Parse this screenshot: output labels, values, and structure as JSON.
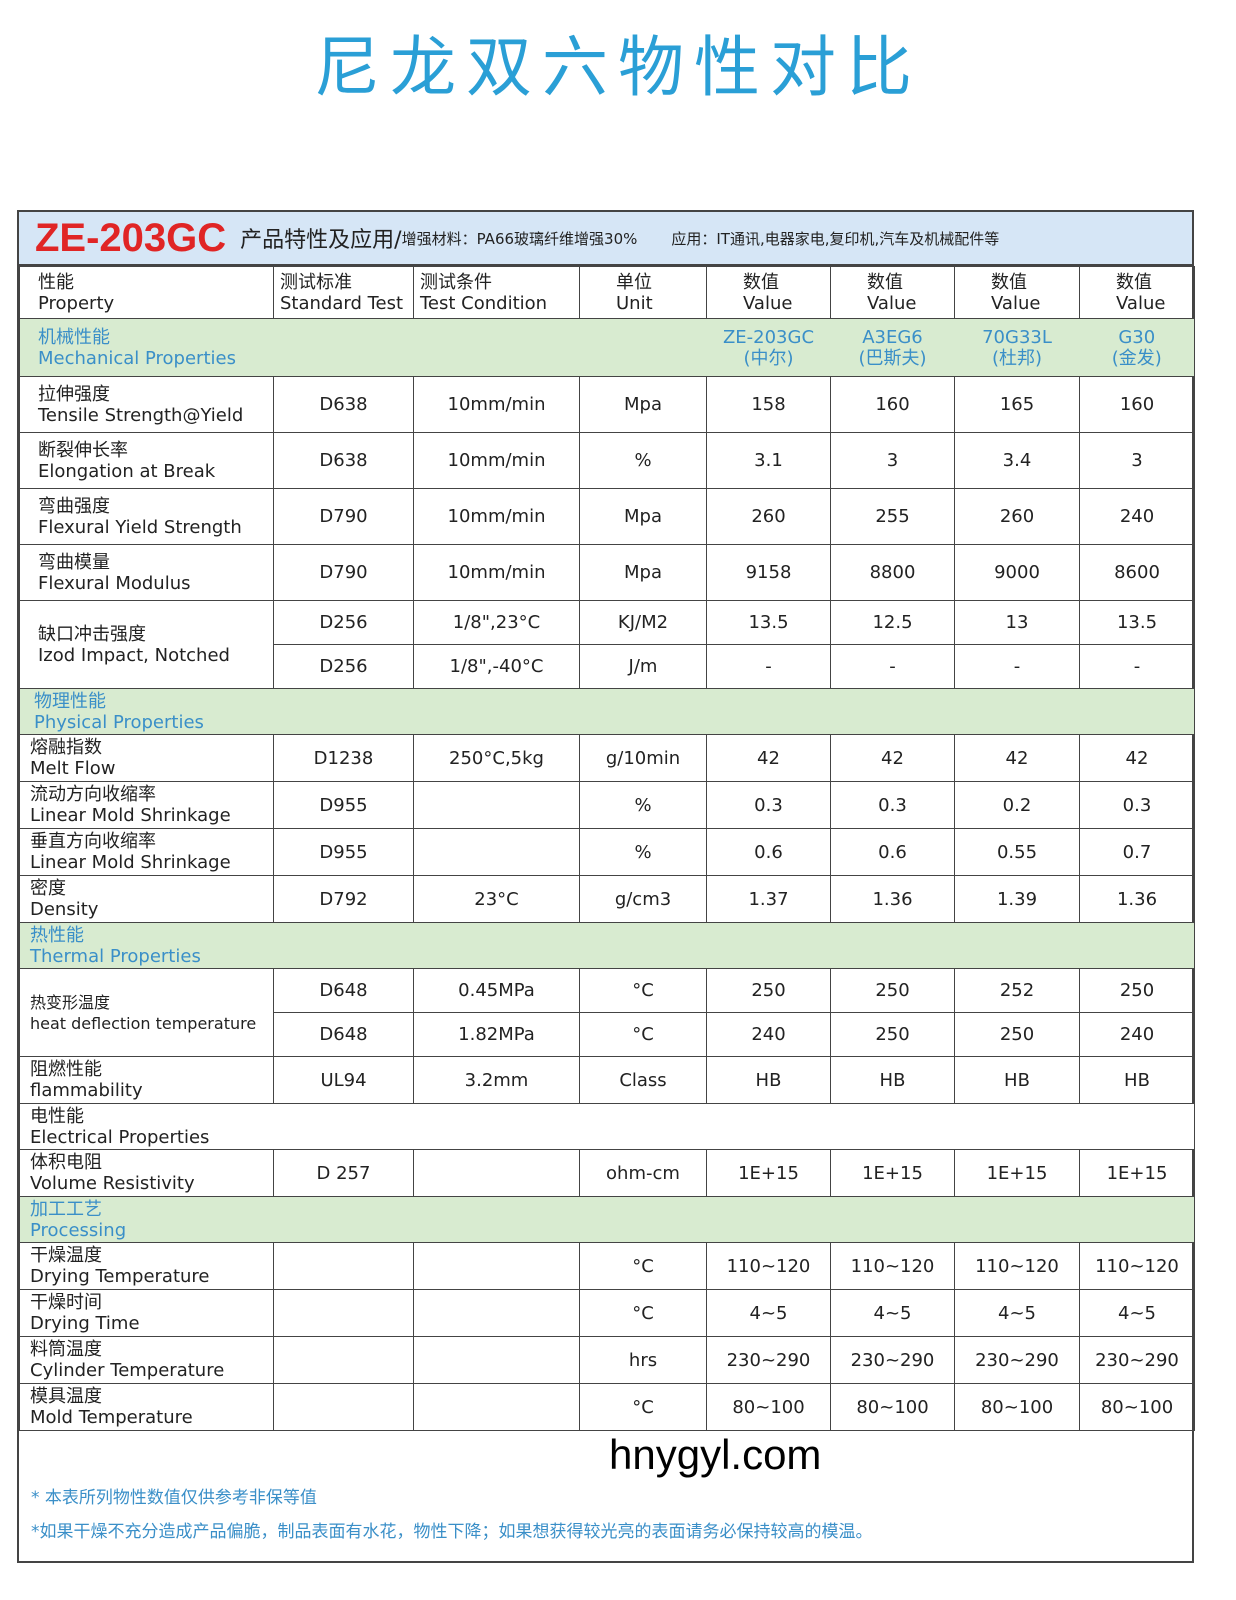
{
  "page_title": "尼龙双六物性对比",
  "header": {
    "model": "ZE-203GC",
    "heading": "产品特性及应用/",
    "material": "增强材料：PA66玻璃纤维增强30%",
    "application": "应用：IT通讯,电器家电,复印机,汽车及机械配件等"
  },
  "columns": [
    {
      "cn": "性能",
      "en": "Property"
    },
    {
      "cn": "测试标准",
      "en": "Standard Test"
    },
    {
      "cn": "测试条件",
      "en": "Test Condition"
    },
    {
      "cn": "单位",
      "en": "Unit"
    },
    {
      "cn": "数值",
      "en": "Value"
    },
    {
      "cn": "数值",
      "en": "Value"
    },
    {
      "cn": "数值",
      "en": "Value"
    },
    {
      "cn": "数值",
      "en": "Value"
    }
  ],
  "products": [
    {
      "grade": "ZE-203GC",
      "maker": "(中尔)"
    },
    {
      "grade": "A3EG6",
      "maker": "(巴斯夫)"
    },
    {
      "grade": "70G33L",
      "maker": "(杜邦)"
    },
    {
      "grade": "G30",
      "maker": "(金发)"
    }
  ],
  "sections": [
    {
      "cn": "机械性能",
      "en": "Mechanical Properties",
      "show_products": true,
      "rows": [
        {
          "cn": "拉伸强度",
          "en": "Tensile Strength@Yield",
          "sub": [
            {
              "std": "D638",
              "cond": "10mm/min",
              "unit": "Mpa",
              "values": [
                "158",
                "160",
                "165",
                "160"
              ]
            }
          ]
        },
        {
          "cn": "断裂伸长率",
          "en": "Elongation at Break",
          "sub": [
            {
              "std": "D638",
              "cond": "10mm/min",
              "unit": "%",
              "values": [
                "3.1",
                "3",
                "3.4",
                "3"
              ]
            }
          ]
        },
        {
          "cn": "弯曲强度",
          "en": "Flexural Yield Strength",
          "sub": [
            {
              "std": "D790",
              "cond": "10mm/min",
              "unit": "Mpa",
              "values": [
                "260",
                "255",
                "260",
                "240"
              ]
            }
          ]
        },
        {
          "cn": "弯曲模量",
          "en": "Flexural Modulus",
          "sub": [
            {
              "std": "D790",
              "cond": "10mm/min",
              "unit": "Mpa",
              "values": [
                "9158",
                "8800",
                "9000",
                "8600"
              ]
            }
          ]
        },
        {
          "cn": "缺口冲击强度",
          "en": "Izod Impact, Notched",
          "sub": [
            {
              "std": "D256",
              "cond": "1/8\",23°C",
              "unit": "KJ/M2",
              "values": [
                "13.5",
                "12.5",
                "13",
                "13.5"
              ]
            },
            {
              "std": "D256",
              "cond": "1/8\",-40°C",
              "unit": "J/m",
              "values": [
                "-",
                "-",
                "-",
                "-"
              ]
            }
          ]
        }
      ]
    },
    {
      "cn": "物理性能",
      "en": "Physical Properties",
      "rows": [
        {
          "cn": "熔融指数",
          "en": "Melt Flow",
          "sub": [
            {
              "std": "D1238",
              "cond": "250°C,5kg",
              "unit": "g/10min",
              "values": [
                "42",
                "42",
                "42",
                "42"
              ]
            }
          ]
        },
        {
          "cn": "流动方向收缩率",
          "en": "Linear Mold Shrinkage",
          "sub": [
            {
              "std": "D955",
              "cond": "",
              "unit": "%",
              "values": [
                "0.3",
                "0.3",
                "0.2",
                "0.3"
              ]
            }
          ]
        },
        {
          "cn": "垂直方向收缩率",
          "en": "Linear Mold Shrinkage",
          "sub": [
            {
              "std": "D955",
              "cond": "",
              "unit": "%",
              "values": [
                "0.6",
                "0.6",
                "0.55",
                "0.7"
              ]
            }
          ]
        },
        {
          "cn": "密度",
          "en": "Density",
          "sub": [
            {
              "std": "D792",
              "cond": "23°C",
              "unit": "g/cm3",
              "values": [
                "1.37",
                "1.36",
                "1.39",
                "1.36"
              ]
            }
          ]
        }
      ]
    },
    {
      "cn": "热性能",
      "en": "Thermal Properties",
      "rows": [
        {
          "cn": "热变形温度",
          "en": "heat deflection temperature",
          "sub": [
            {
              "std": "D648",
              "cond": "0.45MPa",
              "unit": "°C",
              "values": [
                "250",
                "250",
                "252",
                "250"
              ]
            },
            {
              "std": "D648",
              "cond": "1.82MPa",
              "unit": "°C",
              "values": [
                "240",
                "250",
                "250",
                "240"
              ]
            }
          ]
        },
        {
          "cn": "阻燃性能",
          "en": "flammability",
          "sub": [
            {
              "std": "UL94",
              "cond": "3.2mm",
              "unit": "Class",
              "values": [
                "HB",
                "HB",
                "HB",
                "HB"
              ]
            }
          ]
        }
      ]
    },
    {
      "cn": "电性能",
      "en": "Electrical Properties",
      "white": true,
      "rows": [
        {
          "cn": "体积电阻",
          "en": "Volume Resistivity",
          "sub": [
            {
              "std": "D 257",
              "cond": "",
              "unit": "ohm-cm",
              "values": [
                "1E+15",
                "1E+15",
                "1E+15",
                "1E+15"
              ]
            }
          ]
        }
      ]
    },
    {
      "cn": "加工工艺",
      "en": "Processing",
      "rows": [
        {
          "cn": "干燥温度",
          "en": "Drying Temperature",
          "sub": [
            {
              "std": "",
              "cond": "",
              "unit": "°C",
              "values": [
                "110~120",
                "110~120",
                "110~120",
                "110~120"
              ]
            }
          ]
        },
        {
          "cn": "干燥时间",
          "en": "Drying Time",
          "sub": [
            {
              "std": "",
              "cond": "",
              "unit": "°C",
              "values": [
                "4~5",
                "4~5",
                "4~5",
                "4~5"
              ]
            }
          ]
        },
        {
          "cn": "料筒温度",
          "en": "Cylinder Temperature",
          "sub": [
            {
              "std": "",
              "cond": "",
              "unit": "hrs",
              "values": [
                "230~290",
                "230~290",
                "230~290",
                "230~290"
              ]
            }
          ]
        },
        {
          "cn": "模具温度",
          "en": "Mold Temperature",
          "sub": [
            {
              "std": "",
              "cond": "",
              "unit": "°C",
              "values": [
                "80~100",
                "80~100",
                "80~100",
                "80~100"
              ]
            }
          ]
        }
      ]
    }
  ],
  "notes": [
    "* 本表所列物性数值仅供参考非保等值",
    "*如果干燥不充分造成产品偏脆，制品表面有水花，物性下降；如果想获得较光亮的表面请务必保持较高的模温。"
  ],
  "watermark": "hnygyl.com",
  "colors": {
    "title": "#2a9fd6",
    "model": "#e02525",
    "header_bg": "#d6e6f6",
    "section_bg": "#d8ebd0",
    "section_text": "#3a8fc8"
  }
}
